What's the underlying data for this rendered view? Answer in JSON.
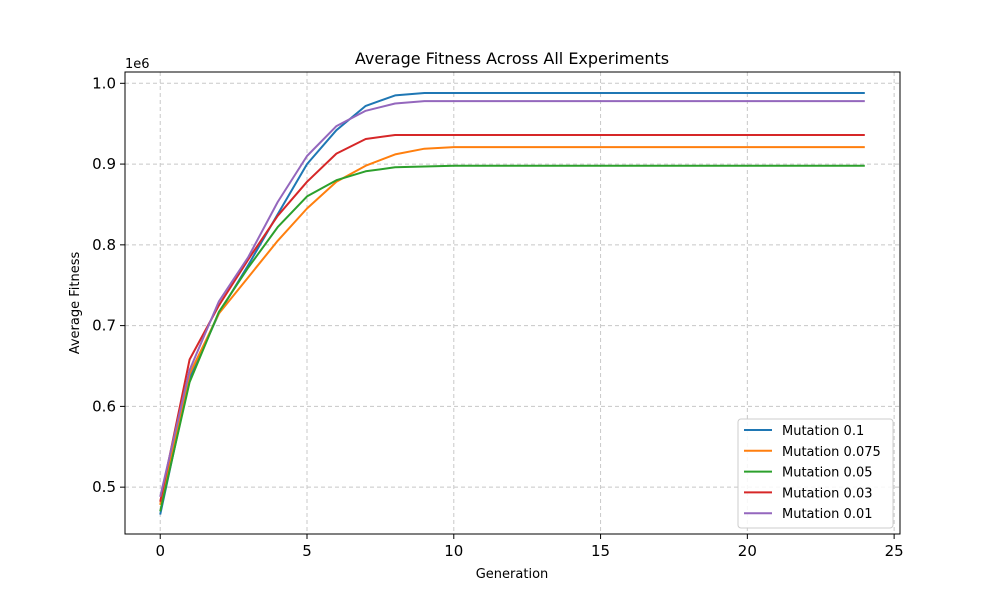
{
  "chart_data": {
    "type": "line",
    "title": "Average Fitness Across All Experiments",
    "xlabel": "Generation",
    "ylabel": "Average Fitness",
    "y_scale_label": "1e6",
    "xlim": [
      -1.2,
      25.2
    ],
    "ylim": [
      0.442,
      1.014
    ],
    "x_ticks": [
      0,
      5,
      10,
      15,
      20,
      25
    ],
    "x_tick_labels": [
      "0",
      "5",
      "10",
      "15",
      "20",
      "25"
    ],
    "y_ticks": [
      0.5,
      0.6,
      0.7,
      0.8,
      0.9,
      1.0
    ],
    "y_tick_labels": [
      "0.5",
      "0.6",
      "0.7",
      "0.8",
      "0.9",
      "1.0"
    ],
    "grid": true,
    "legend_position": "lower-right",
    "x": [
      0,
      1,
      2,
      3,
      4,
      5,
      6,
      7,
      8,
      9,
      10,
      11,
      12,
      13,
      14,
      15,
      16,
      17,
      18,
      19,
      20,
      21,
      22,
      23,
      24
    ],
    "series": [
      {
        "name": "Mutation 0.1",
        "color": "#1f77b4",
        "values": [
          0.466,
          0.635,
          0.715,
          0.775,
          0.838,
          0.9,
          0.942,
          0.972,
          0.985,
          0.988,
          0.988,
          0.988,
          0.988,
          0.988,
          0.988,
          0.988,
          0.988,
          0.988,
          0.988,
          0.988,
          0.988,
          0.988,
          0.988,
          0.988,
          0.988
        ]
      },
      {
        "name": "Mutation 0.075",
        "color": "#ff7f0e",
        "values": [
          0.478,
          0.64,
          0.715,
          0.76,
          0.805,
          0.845,
          0.878,
          0.898,
          0.912,
          0.919,
          0.921,
          0.921,
          0.921,
          0.921,
          0.921,
          0.921,
          0.921,
          0.921,
          0.921,
          0.921,
          0.921,
          0.921,
          0.921,
          0.921,
          0.921
        ]
      },
      {
        "name": "Mutation 0.05",
        "color": "#2ca02c",
        "values": [
          0.47,
          0.63,
          0.717,
          0.772,
          0.822,
          0.86,
          0.88,
          0.891,
          0.896,
          0.897,
          0.898,
          0.898,
          0.898,
          0.898,
          0.898,
          0.898,
          0.898,
          0.898,
          0.898,
          0.898,
          0.898,
          0.898,
          0.898,
          0.898,
          0.898
        ]
      },
      {
        "name": "Mutation 0.03",
        "color": "#d62728",
        "values": [
          0.482,
          0.658,
          0.725,
          0.782,
          0.836,
          0.878,
          0.913,
          0.931,
          0.936,
          0.936,
          0.936,
          0.936,
          0.936,
          0.936,
          0.936,
          0.936,
          0.936,
          0.936,
          0.936,
          0.936,
          0.936,
          0.936,
          0.936,
          0.936,
          0.936
        ]
      },
      {
        "name": "Mutation 0.01",
        "color": "#9467bd",
        "values": [
          0.488,
          0.645,
          0.73,
          0.785,
          0.853,
          0.91,
          0.947,
          0.966,
          0.975,
          0.978,
          0.978,
          0.978,
          0.978,
          0.978,
          0.978,
          0.978,
          0.978,
          0.978,
          0.978,
          0.978,
          0.978,
          0.978,
          0.978,
          0.978,
          0.978
        ]
      }
    ]
  }
}
